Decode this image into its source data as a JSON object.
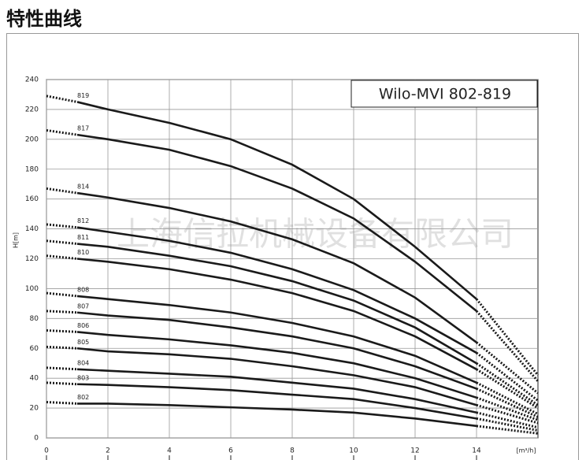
{
  "chart_data": {
    "type": "line",
    "title": "特性曲线",
    "legend_title": "Wilo-MVI 802-819",
    "watermark": "上海信拉机械设备有限公司",
    "ylabel": "H[m]",
    "xlabel": "[m³/h]",
    "x": [
      0,
      1,
      2,
      4,
      6,
      8,
      10,
      12,
      14,
      16
    ],
    "xlim": [
      0,
      16
    ],
    "xticks": [
      0,
      2,
      4,
      6,
      8,
      10,
      12,
      14
    ],
    "ylim": [
      0,
      240
    ],
    "yticks": [
      0,
      20,
      40,
      60,
      80,
      100,
      120,
      140,
      160,
      180,
      200,
      220,
      240
    ],
    "grid": true,
    "series": [
      {
        "name": "819",
        "color": "#1a1a1a",
        "values": [
          229,
          225,
          220,
          211,
          200,
          183,
          160,
          128,
          93,
          42
        ]
      },
      {
        "name": "817",
        "color": "#1a1a1a",
        "values": [
          206,
          203,
          200,
          193,
          182,
          167,
          147,
          118,
          85,
          38
        ]
      },
      {
        "name": "814",
        "color": "#1a1a1a",
        "values": [
          167,
          164,
          161,
          154,
          145,
          133,
          117,
          94,
          64,
          30
        ]
      },
      {
        "name": "812",
        "color": "#1a1a1a",
        "values": [
          143,
          141,
          138,
          132,
          124,
          113,
          99,
          80,
          57,
          25
        ]
      },
      {
        "name": "811",
        "color": "#1a1a1a",
        "values": [
          132,
          130,
          128,
          122,
          115,
          105,
          92,
          74,
          50,
          22
        ]
      },
      {
        "name": "810",
        "color": "#1a1a1a",
        "values": [
          122,
          120,
          118,
          113,
          106,
          97,
          85,
          68,
          46,
          20
        ]
      },
      {
        "name": "808",
        "color": "#1a1a1a",
        "values": [
          97,
          95,
          93,
          89,
          84,
          77,
          68,
          55,
          37,
          16
        ]
      },
      {
        "name": "807",
        "color": "#1a1a1a",
        "values": [
          85,
          84,
          82,
          79,
          74,
          68,
          60,
          48,
          33,
          14
        ]
      },
      {
        "name": "806",
        "color": "#1a1a1a",
        "values": [
          72,
          71,
          69,
          66,
          62,
          57,
          50,
          40,
          27,
          12
        ]
      },
      {
        "name": "805",
        "color": "#1a1a1a",
        "values": [
          61,
          60,
          58,
          56,
          53,
          48,
          42,
          34,
          22,
          10
        ]
      },
      {
        "name": "804",
        "color": "#1a1a1a",
        "values": [
          47,
          46,
          45,
          43,
          41,
          37,
          33,
          26,
          17,
          7
        ]
      },
      {
        "name": "803",
        "color": "#1a1a1a",
        "values": [
          37,
          36,
          35.5,
          34,
          32,
          29,
          26,
          20,
          13,
          5
        ]
      },
      {
        "name": "802",
        "color": "#1a1a1a",
        "values": [
          24,
          23,
          23,
          22,
          20.5,
          19,
          17,
          13,
          8,
          3
        ]
      }
    ]
  }
}
